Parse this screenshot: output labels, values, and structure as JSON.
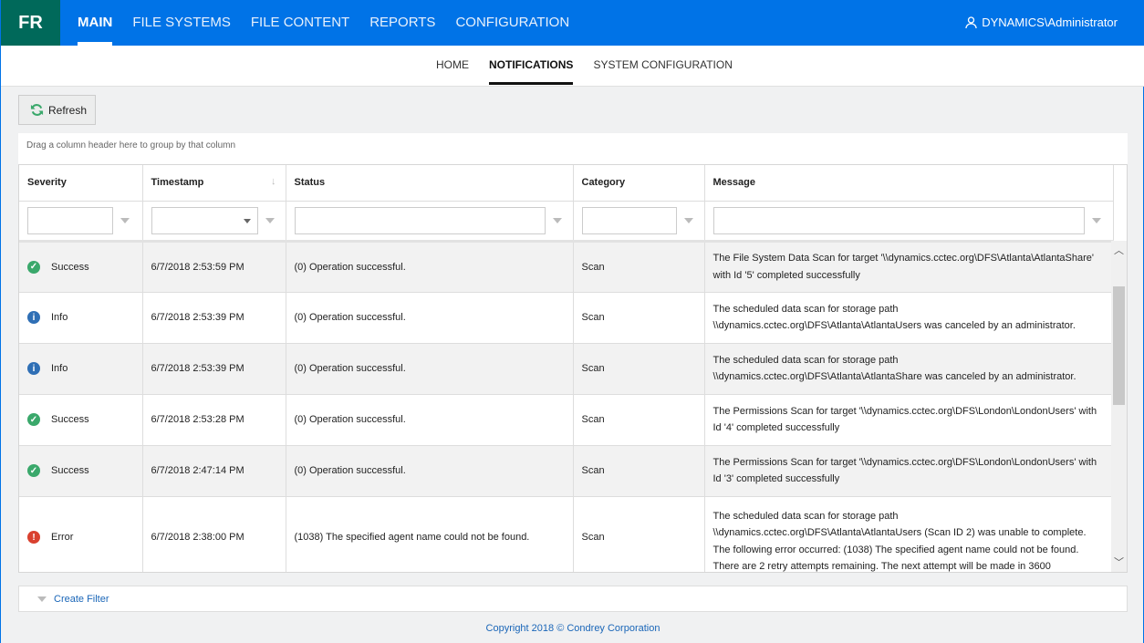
{
  "app": {
    "logo": "FR",
    "user": "DYNAMICS\\Administrator"
  },
  "main_nav": [
    "MAIN",
    "FILE SYSTEMS",
    "FILE CONTENT",
    "REPORTS",
    "CONFIGURATION"
  ],
  "sub_nav": [
    "HOME",
    "NOTIFICATIONS",
    "SYSTEM CONFIGURATION"
  ],
  "toolbar": {
    "refresh": "Refresh"
  },
  "grid": {
    "group_hint": "Drag a column header here to group by that column",
    "columns": [
      "Severity",
      "Timestamp",
      "Status",
      "Category",
      "Message"
    ],
    "rows": [
      {
        "severity": "Success",
        "timestamp": "6/7/2018 2:53:59 PM",
        "status": "(0) Operation successful.",
        "category": "Scan",
        "message": "The File System Data Scan for target '\\\\dynamics.cctec.org\\DFS\\Atlanta\\AtlantaShare' with Id '5' completed successfully"
      },
      {
        "severity": "Info",
        "timestamp": "6/7/2018 2:53:39 PM",
        "status": "(0) Operation successful.",
        "category": "Scan",
        "message": "The scheduled data scan for storage path \\\\dynamics.cctec.org\\DFS\\Atlanta\\AtlantaUsers was canceled by an administrator."
      },
      {
        "severity": "Info",
        "timestamp": "6/7/2018 2:53:39 PM",
        "status": "(0) Operation successful.",
        "category": "Scan",
        "message": "The scheduled data scan for storage path \\\\dynamics.cctec.org\\DFS\\Atlanta\\AtlantaShare was canceled by an administrator."
      },
      {
        "severity": "Success",
        "timestamp": "6/7/2018 2:53:28 PM",
        "status": "(0) Operation successful.",
        "category": "Scan",
        "message": "The Permissions Scan for target '\\\\dynamics.cctec.org\\DFS\\London\\LondonUsers' with Id '4' completed successfully"
      },
      {
        "severity": "Success",
        "timestamp": "6/7/2018 2:47:14 PM",
        "status": "(0) Operation successful.",
        "category": "Scan",
        "message": "The Permissions Scan for target '\\\\dynamics.cctec.org\\DFS\\London\\LondonUsers' with Id '3' completed successfully"
      },
      {
        "severity": "Error",
        "timestamp": "6/7/2018 2:38:00 PM",
        "status": "(1038) The specified agent name could not be found.",
        "category": "Scan",
        "message": "The scheduled data scan for storage path \\\\dynamics.cctec.org\\DFS\\Atlanta\\AtlantaUsers (Scan ID 2) was unable to complete. The following error occurred: (1038) The specified agent name could not be found. There are 2 retry attempts remaining. The next attempt will be made in 3600"
      }
    ]
  },
  "footer": {
    "create_filter": "Create Filter",
    "copyright": "Copyright 2018 © Condrey Corporation"
  },
  "colors": {
    "header": "#0073e7",
    "logo": "#00695a",
    "success": "#3aa86b",
    "info": "#2f6fb5",
    "error": "#d9412f"
  }
}
